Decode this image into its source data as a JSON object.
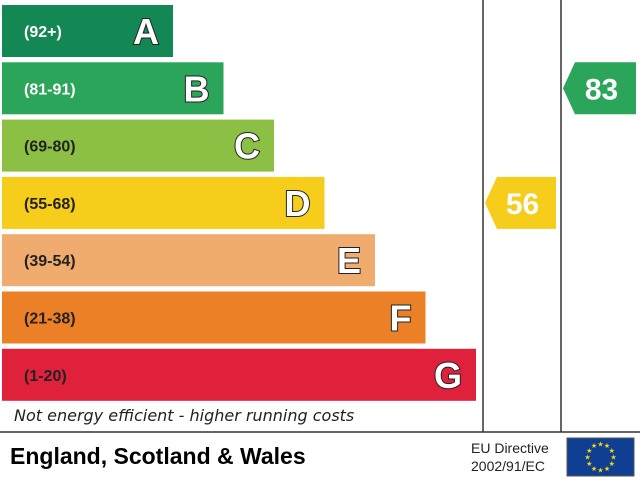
{
  "chart_data": {
    "type": "bar",
    "bands": [
      {
        "letter": "A",
        "range": "(92+)",
        "color": "#138855",
        "range_color": "#ffffff"
      },
      {
        "letter": "B",
        "range": "(81-91)",
        "color": "#2aa559",
        "range_color": "#ffffff"
      },
      {
        "letter": "C",
        "range": "(69-80)",
        "color": "#8cc045",
        "range_color": "#222222"
      },
      {
        "letter": "D",
        "range": "(55-68)",
        "color": "#f5cd1a",
        "range_color": "#222222"
      },
      {
        "letter": "E",
        "range": "(39-54)",
        "color": "#f0ac6e",
        "range_color": "#222222"
      },
      {
        "letter": "F",
        "range": "(21-38)",
        "color": "#ec8027",
        "range_color": "#222222"
      },
      {
        "letter": "G",
        "range": "(1-20)",
        "color": "#e0213b",
        "range_color": "#222222"
      }
    ],
    "current": {
      "value": 56,
      "band": "D",
      "color": "#f5cd1a"
    },
    "potential": {
      "value": 83,
      "band": "B",
      "color": "#2aa559"
    },
    "footnote": "Not energy efficient - higher running costs"
  },
  "footer": {
    "country": "England, Scotland & Wales",
    "directive_line1": "EU Directive",
    "directive_line2": "2002/91/EC",
    "flag_color": "#0f3f93",
    "star_color": "#f6d40e"
  }
}
